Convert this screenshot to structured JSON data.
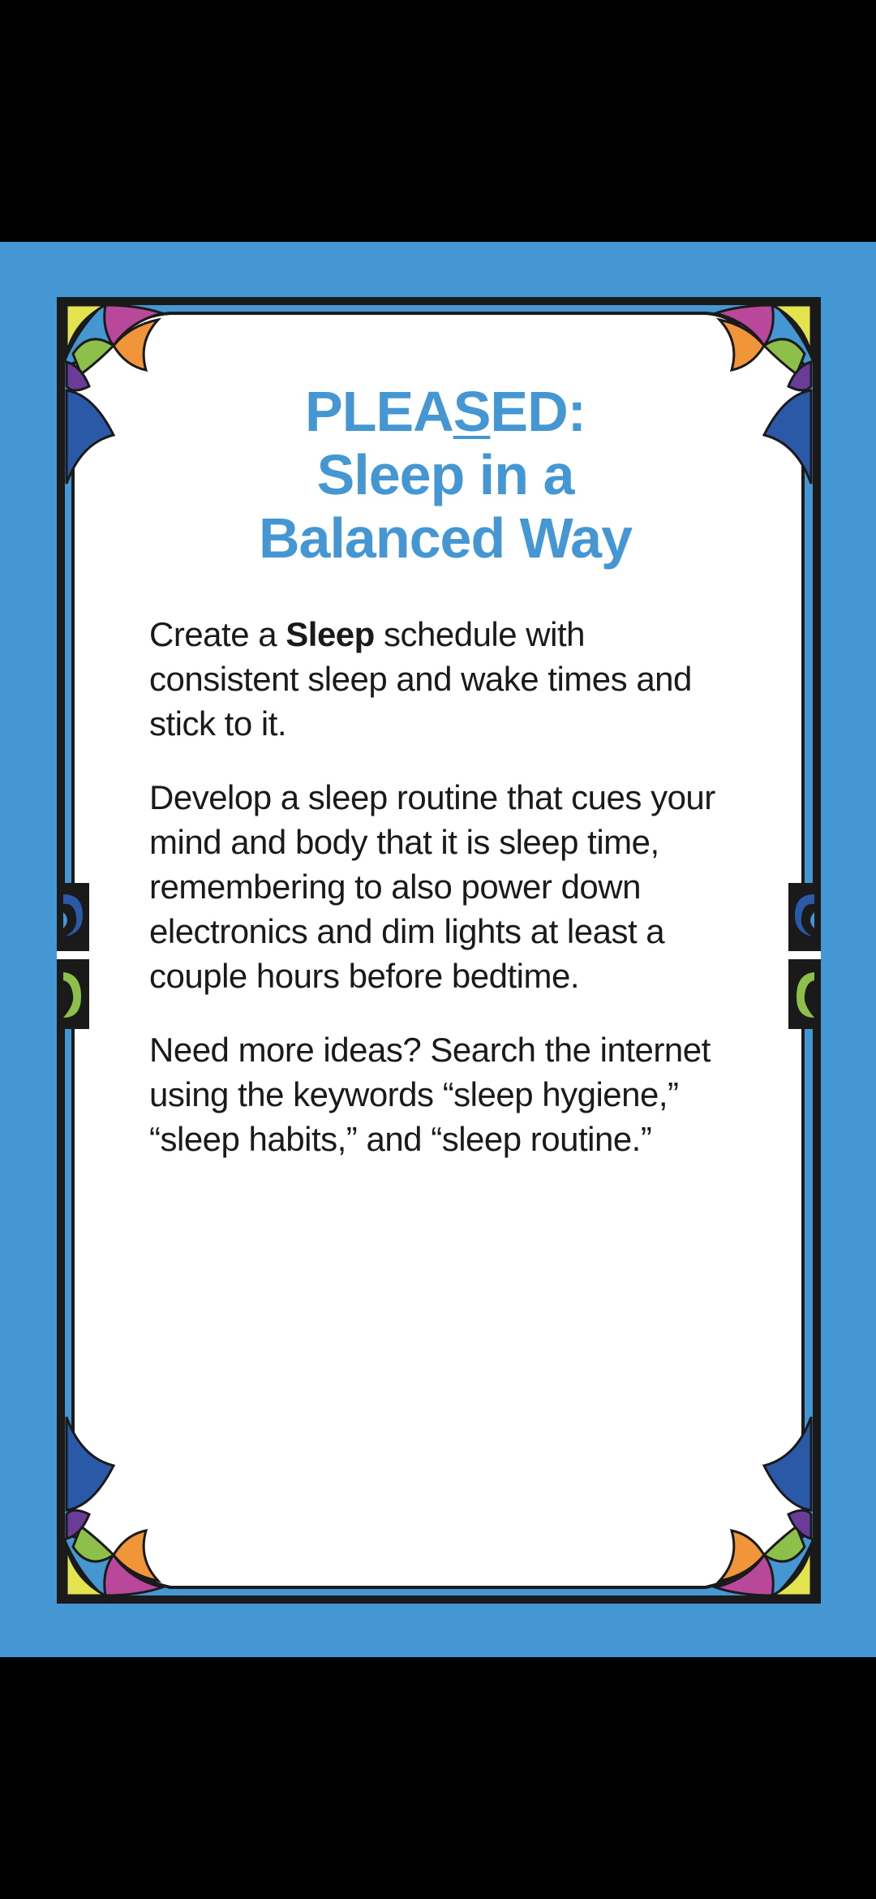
{
  "colors": {
    "background_outer": "#000000",
    "card_backdrop": "#4597d3",
    "card_fill": "#ffffff",
    "title_color": "#4597d3",
    "body_text": "#1a1a1a",
    "ornament_yellow": "#e3e34f",
    "ornament_green": "#8cc04b",
    "ornament_magenta": "#b9479a",
    "ornament_purple": "#6a3b97",
    "ornament_orange": "#f0953a",
    "ornament_dark_blue": "#2a59a8"
  },
  "card": {
    "title": {
      "line1_part1": "PLEA",
      "line1_underlined": "S",
      "line1_part2": "ED:",
      "line2": "Sleep in a",
      "line3": "Balanced Way"
    },
    "paragraph1": {
      "before_bold": "Create a ",
      "bold": "Sleep",
      "after_bold": " schedule with consistent sleep and wake times and stick to it."
    },
    "paragraph2": "Develop a sleep routine that cues your mind and body that it is sleep time, remembering to also power down electronics and dim lights at least a couple hours before bedtime.",
    "paragraph3": "Need more ideas? Search the internet using the keywords “sleep hygiene,” “sleep habits,” and “sleep routine.”"
  },
  "icons": {
    "corner_ornament": "art-nouveau-corner-ornament",
    "side_ornament": "scroll-side-ornament"
  }
}
